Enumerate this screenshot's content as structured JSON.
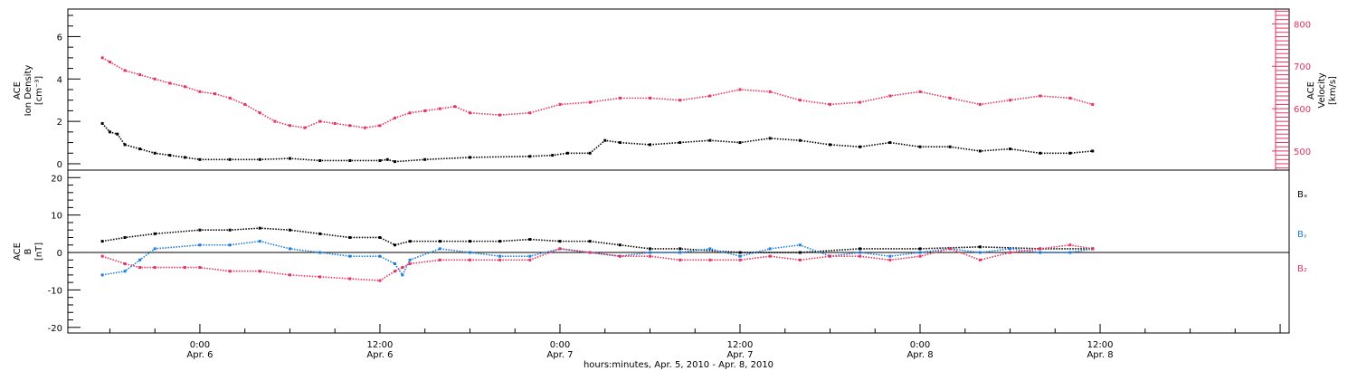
{
  "chart_data": [
    {
      "type": "scatter",
      "panel": "top",
      "ylabel_left": [
        "ACE",
        "Ion Density",
        "[cm⁻³]"
      ],
      "ylabel_right": [
        "ACE",
        "Velocity",
        "[km/s]"
      ],
      "yticks_left": [
        "0",
        "2",
        "4",
        "6"
      ],
      "yticks_right": [
        "500",
        "600",
        "700",
        "800"
      ],
      "ylim_left": [
        -0.3,
        7.3
      ],
      "ylim_right": [
        455,
        835
      ],
      "colors": {
        "density": "#000000",
        "velocity": "#e8315f"
      },
      "series": [
        {
          "axis": "left",
          "x_hours": [
            -6.5,
            -6,
            -5.5,
            -5,
            -4,
            -3,
            -2,
            -1,
            0,
            2,
            4,
            6,
            8,
            10,
            12,
            12.5,
            13,
            15,
            18,
            22,
            23.5,
            24.5,
            26,
            27,
            28,
            30,
            32,
            34,
            36,
            38,
            40,
            42,
            44,
            46,
            48,
            50,
            52,
            54,
            56,
            58,
            59.5
          ],
          "values": [
            1.9,
            1.5,
            1.4,
            0.9,
            0.7,
            0.5,
            0.4,
            0.3,
            0.2,
            0.2,
            0.2,
            0.25,
            0.15,
            0.15,
            0.15,
            0.2,
            0.1,
            0.2,
            0.3,
            0.35,
            0.4,
            0.5,
            0.5,
            1.1,
            1.0,
            0.9,
            1.0,
            1.1,
            1.0,
            1.2,
            1.1,
            0.9,
            0.8,
            1.0,
            0.8,
            0.8,
            0.6,
            0.7,
            0.5,
            0.5,
            0.6
          ]
        },
        {
          "axis": "right",
          "x_hours": [
            -6.5,
            -6,
            -5,
            -4,
            -3,
            -2,
            -1,
            0,
            1,
            2,
            3,
            4,
            5,
            6,
            7,
            8,
            9,
            10,
            11,
            12,
            13,
            14,
            15,
            16,
            17,
            18,
            20,
            22,
            24,
            26,
            28,
            30,
            32,
            34,
            36,
            38,
            40,
            42,
            44,
            46,
            48,
            50,
            52,
            54,
            56,
            58,
            59.5
          ],
          "values": [
            720,
            710,
            690,
            680,
            670,
            660,
            652,
            640,
            635,
            625,
            610,
            590,
            570,
            560,
            555,
            570,
            565,
            560,
            555,
            560,
            578,
            590,
            595,
            600,
            605,
            590,
            585,
            590,
            610,
            615,
            625,
            625,
            620,
            630,
            645,
            640,
            620,
            610,
            615,
            630,
            640,
            625,
            610,
            620,
            630,
            625,
            610
          ]
        }
      ]
    },
    {
      "type": "scatter",
      "panel": "bottom",
      "ylabel_left": [
        "ACE",
        "B",
        "[nT]"
      ],
      "yticks_left": [
        "-20",
        "-10",
        "0",
        "10",
        "20"
      ],
      "ylim": [
        -21.5,
        22
      ],
      "legend": [
        "Bₓ",
        "Bᵧ",
        "B₂"
      ],
      "colors": {
        "bx": "#000000",
        "by": "#1a7ee0",
        "bz": "#e8315f"
      },
      "series": [
        {
          "x_hours": [
            -6.5,
            -5,
            -3,
            0,
            2,
            4,
            6,
            8,
            10,
            12,
            13,
            14,
            16,
            18,
            20,
            22,
            24,
            26,
            28,
            30,
            32,
            36,
            40,
            44,
            48,
            52,
            56,
            59.5
          ],
          "values": [
            3,
            4,
            5,
            6,
            6,
            6.5,
            6,
            5,
            4,
            4,
            2,
            3,
            3,
            3,
            3,
            3.5,
            3,
            3,
            2,
            1,
            1,
            0,
            0,
            1,
            1,
            1.5,
            1,
            1
          ]
        },
        {
          "x_hours": [
            -6.5,
            -5,
            -4,
            -3,
            0,
            2,
            4,
            6,
            8,
            10,
            12,
            13,
            13.5,
            14,
            16,
            18,
            20,
            22,
            24,
            26,
            28,
            30,
            32,
            34,
            36,
            38,
            40,
            42,
            44,
            46,
            48,
            50,
            52,
            54,
            56,
            58,
            59.5
          ],
          "values": [
            -6,
            -5,
            -2,
            1,
            2,
            2,
            3,
            1,
            0,
            -1,
            -1,
            -3,
            -6,
            -2,
            1,
            0,
            -1,
            -1,
            1,
            0,
            -1,
            0,
            0,
            1,
            -1,
            1,
            2,
            -1,
            0,
            -1,
            0,
            1,
            0,
            1,
            0,
            0,
            1
          ]
        },
        {
          "x_hours": [
            -6.5,
            -5,
            -4,
            -3,
            -1,
            0,
            2,
            4,
            6,
            8,
            10,
            12,
            13,
            13.5,
            14,
            16,
            18,
            20,
            22,
            24,
            26,
            28,
            30,
            32,
            34,
            36,
            38,
            40,
            42,
            44,
            46,
            48,
            50,
            52,
            54,
            56,
            58,
            59.5
          ],
          "values": [
            -1,
            -3,
            -4,
            -4,
            -4,
            -4,
            -5,
            -5,
            -6,
            -6.5,
            -7,
            -7.5,
            -5,
            -4,
            -3,
            -2,
            -2,
            -2,
            -2,
            1,
            0,
            -1,
            -1,
            -2,
            -2,
            -2,
            -1,
            -2,
            -1,
            -1,
            -2,
            -1,
            1,
            -2,
            0,
            1,
            2,
            1
          ]
        }
      ]
    }
  ],
  "time_axis": {
    "ticks": [
      {
        "time": "0:00",
        "date": "Apr. 6"
      },
      {
        "time": "12:00",
        "date": "Apr. 6"
      },
      {
        "time": "0:00",
        "date": "Apr. 7"
      },
      {
        "time": "12:00",
        "date": "Apr. 7"
      },
      {
        "time": "0:00",
        "date": "Apr. 8"
      },
      {
        "time": "12:00",
        "date": "Apr. 8"
      }
    ],
    "label": "hours:minutes, Apr.  5, 2010 - Apr.  8, 2010"
  }
}
